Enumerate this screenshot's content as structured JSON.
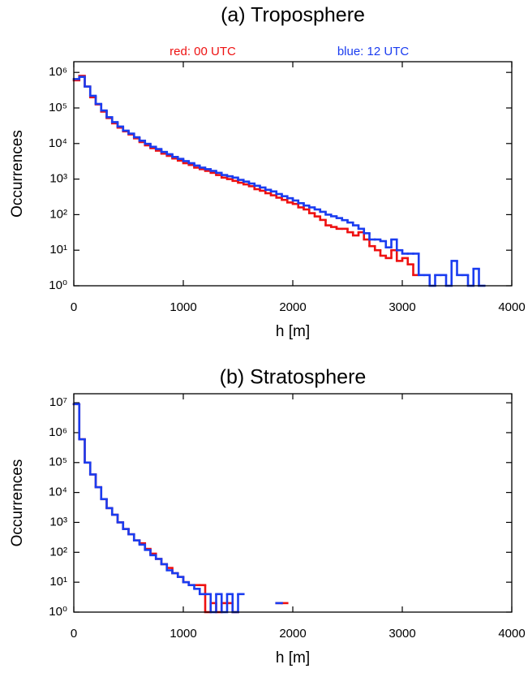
{
  "chart_data": [
    {
      "type": "step-histogram",
      "title": "(a) Troposphere",
      "xlabel": "h  [m]",
      "ylabel": "Occurrences",
      "log_y": true,
      "legend": "top",
      "xlim": [
        0,
        4000
      ],
      "xticks": [
        0,
        1000,
        2000,
        3000,
        4000
      ],
      "ylim": [
        1,
        2000000
      ],
      "yticks": [
        {
          "value": 1,
          "label": "10⁰"
        },
        {
          "value": 10,
          "label": "10¹"
        },
        {
          "value": 100,
          "label": "10²"
        },
        {
          "value": 1000,
          "label": "10³"
        },
        {
          "value": 10000,
          "label": "10⁴"
        },
        {
          "value": 100000,
          "label": "10⁵"
        },
        {
          "value": 1000000,
          "label": "10⁶"
        }
      ],
      "bins": [
        0,
        50,
        100,
        150,
        200,
        250,
        300,
        350,
        400,
        450,
        500,
        550,
        600,
        650,
        700,
        750,
        800,
        850,
        900,
        950,
        1000,
        1050,
        1100,
        1150,
        1200,
        1250,
        1300,
        1350,
        1400,
        1450,
        1500,
        1550,
        1600,
        1650,
        1700,
        1750,
        1800,
        1850,
        1900,
        1950,
        2000,
        2050,
        2100,
        2150,
        2200,
        2250,
        2300,
        2350,
        2400,
        2450,
        2500,
        2550,
        2600,
        2650,
        2700,
        2750,
        2800,
        2850,
        2900,
        2950,
        3000,
        3050,
        3100,
        3150,
        3200,
        3250,
        3300,
        3350,
        3400,
        3450,
        3500,
        3550,
        3600,
        3650,
        3700,
        3750,
        3800,
        3850,
        3900,
        3950,
        4000
      ],
      "series": [
        {
          "name": "red: 00 UTC",
          "color": "#ee1111",
          "values": [
            600000,
            800000,
            400000,
            200000,
            126000,
            79000,
            52000,
            37000,
            28000,
            22000,
            18000,
            14000,
            11000,
            8900,
            7400,
            6300,
            5200,
            4500,
            3800,
            3300,
            2800,
            2500,
            2100,
            1900,
            1700,
            1500,
            1300,
            1100,
            1000,
            890,
            790,
            710,
            630,
            520,
            470,
            400,
            350,
            300,
            260,
            220,
            200,
            160,
            140,
            110,
            89,
            71,
            50,
            45,
            40,
            40,
            32,
            26,
            32,
            20,
            13,
            10,
            7,
            6,
            10,
            5,
            6,
            4,
            2,
            null,
            null,
            null,
            null,
            null,
            null,
            null,
            null,
            null,
            null,
            null,
            null,
            null,
            null,
            null,
            null,
            null,
            null
          ]
        },
        {
          "name": "blue: 12 UTC",
          "color": "#1a3cf0",
          "values": [
            650000,
            750000,
            400000,
            220000,
            130000,
            85000,
            55000,
            40000,
            30000,
            23000,
            19000,
            15000,
            12000,
            9800,
            8100,
            7000,
            5800,
            5000,
            4200,
            3700,
            3200,
            2800,
            2400,
            2100,
            1900,
            1700,
            1500,
            1300,
            1200,
            1100,
            950,
            850,
            750,
            650,
            580,
            500,
            450,
            380,
            330,
            290,
            250,
            210,
            180,
            160,
            140,
            120,
            100,
            90,
            80,
            70,
            60,
            50,
            40,
            30,
            20,
            20,
            18,
            12,
            20,
            10,
            8,
            8,
            8,
            2,
            2,
            1,
            2,
            2,
            1,
            5,
            2,
            2,
            1,
            3,
            1,
            null,
            null,
            null,
            null,
            null
          ]
        }
      ]
    },
    {
      "type": "step-histogram",
      "title": "(b) Stratosphere",
      "xlabel": "h  [m]",
      "ylabel": "Occurrences",
      "log_y": true,
      "xlim": [
        0,
        4000
      ],
      "xticks": [
        0,
        1000,
        2000,
        3000,
        4000
      ],
      "ylim": [
        1,
        20000000
      ],
      "yticks": [
        {
          "value": 1,
          "label": "10⁰"
        },
        {
          "value": 10,
          "label": "10¹"
        },
        {
          "value": 100,
          "label": "10²"
        },
        {
          "value": 1000,
          "label": "10³"
        },
        {
          "value": 10000,
          "label": "10⁴"
        },
        {
          "value": 100000,
          "label": "10⁵"
        },
        {
          "value": 1000000,
          "label": "10⁶"
        },
        {
          "value": 10000000,
          "label": "10⁷"
        }
      ],
      "bins": [
        0,
        50,
        100,
        150,
        200,
        250,
        300,
        350,
        400,
        450,
        500,
        550,
        600,
        650,
        700,
        750,
        800,
        850,
        900,
        950,
        1000,
        1050,
        1100,
        1150,
        1200,
        1250,
        1300,
        1350,
        1400,
        1450,
        1500,
        1550,
        1600,
        1650,
        1700,
        1750,
        1800,
        1850,
        1900,
        1950,
        2000,
        2050,
        2100,
        2150,
        2200,
        2250,
        2300,
        2350,
        2400,
        2450,
        2500,
        2550,
        2600,
        2650,
        2700,
        2750,
        2800,
        2850,
        2900,
        2950,
        3000,
        3050,
        3100,
        3150,
        3200,
        3250,
        3300,
        3350,
        3400,
        3450,
        3500,
        3550,
        3600,
        3650,
        3700,
        3750,
        3800,
        3850,
        3900,
        3950,
        4000
      ],
      "series": [
        {
          "color": "#ee1111",
          "values": [
            9000000,
            600000,
            100000,
            40000,
            15000,
            6000,
            3000,
            1800,
            1000,
            600,
            400,
            250,
            200,
            130,
            90,
            60,
            40,
            30,
            20,
            15,
            10,
            8,
            8,
            8,
            1,
            2,
            1,
            2,
            2,
            1,
            null,
            null,
            null,
            null,
            null,
            null,
            null,
            2,
            2,
            null,
            null,
            null,
            null,
            null,
            null,
            null,
            null,
            null,
            null,
            null,
            null,
            null,
            null,
            null,
            null,
            null,
            null,
            null,
            null,
            null,
            null,
            null,
            null,
            null,
            null,
            null,
            null,
            null,
            null,
            null,
            null,
            null,
            null,
            null,
            null,
            null,
            null,
            null,
            null,
            null
          ]
        },
        {
          "color": "#1a3cf0",
          "values": [
            9000000,
            600000,
            100000,
            40000,
            15000,
            6000,
            3000,
            1800,
            1000,
            600,
            400,
            250,
            180,
            120,
            80,
            60,
            40,
            25,
            20,
            15,
            10,
            8,
            6,
            4,
            4,
            1,
            4,
            1,
            4,
            1,
            4,
            null,
            null,
            null,
            null,
            null,
            null,
            2,
            null,
            null,
            null,
            null,
            null,
            null,
            null,
            null,
            null,
            null,
            null,
            null,
            null,
            null,
            null,
            null,
            null,
            null,
            null,
            null,
            null,
            null,
            null,
            null,
            null,
            null,
            null,
            null,
            null,
            null,
            null,
            null,
            null,
            null,
            null,
            null,
            null,
            null,
            null,
            null,
            null,
            null
          ]
        }
      ]
    }
  ]
}
